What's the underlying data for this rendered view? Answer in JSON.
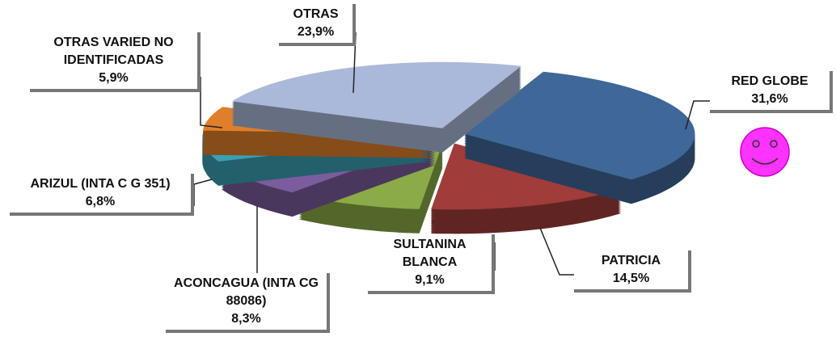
{
  "chart_data": {
    "type": "pie",
    "categories": [
      "RED GLOBE",
      "PATRICIA",
      "SULTANINA BLANCA",
      "ACONCAGUA (INTA CG 88086)",
      "ARIZUL (INTA C G 351)",
      "OTRAS VARIED NO IDENTIFICADAS",
      "OTRAS"
    ],
    "values": [
      31.6,
      14.5,
      9.1,
      8.3,
      6.8,
      5.9,
      23.9
    ],
    "value_labels": [
      "31,6%",
      "14,5%",
      "9,1%",
      "8,3%",
      "6,8%",
      "5,9%",
      "23,9%"
    ],
    "colors": [
      "#3f6797",
      "#a03c3a",
      "#8aab48",
      "#7b5c9c",
      "#3aa0b4",
      "#e07f2a",
      "#aab9d9"
    ]
  }
}
